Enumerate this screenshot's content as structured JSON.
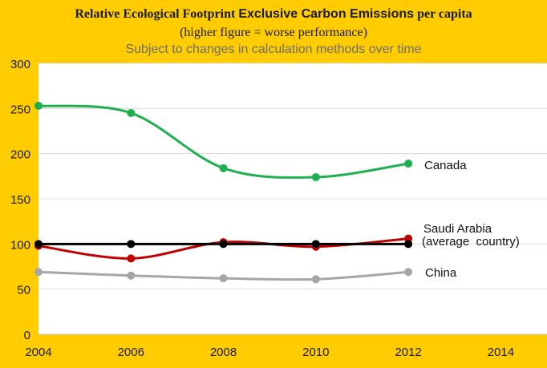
{
  "title": {
    "part1": "Relative Ecological Footprint ",
    "part2": "Exclusive Carbon Emissions",
    "part3": " per capita"
  },
  "subtitle1": "(higher figure = worse performance)",
  "subtitle2": "Subject to changes in calculation methods over time",
  "colors": {
    "background": "#FFCC00",
    "plot_area": "#FFFFFF",
    "grid": "#D9D9D9"
  },
  "chart_data": {
    "type": "line",
    "x_ticks": [
      2004,
      2006,
      2008,
      2010,
      2012,
      2014
    ],
    "y_ticks": [
      0,
      50,
      100,
      150,
      200,
      250,
      300
    ],
    "xlim": [
      2004,
      2015
    ],
    "ylim": [
      0,
      300
    ],
    "grid": true,
    "series": [
      {
        "name": "Canada",
        "color": "#1DB04E",
        "points": [
          [
            2004,
            253
          ],
          [
            2006,
            245
          ],
          [
            2008,
            184
          ],
          [
            2010,
            174
          ],
          [
            2012,
            189
          ]
        ],
        "labels": [
          "Canada"
        ]
      },
      {
        "name": "Saudi Arabia",
        "color": "#C00000",
        "points": [
          [
            2004,
            98
          ],
          [
            2006,
            84
          ],
          [
            2008,
            102
          ],
          [
            2010,
            97
          ],
          [
            2012,
            106
          ]
        ],
        "labels": [
          "Saudi Arabia"
        ]
      },
      {
        "name": "(average country)",
        "color": "#000000",
        "points": [
          [
            2004,
            100
          ],
          [
            2006,
            100
          ],
          [
            2008,
            100
          ],
          [
            2010,
            100
          ],
          [
            2012,
            100
          ]
        ],
        "labels": [
          "(average  country)"
        ]
      },
      {
        "name": "China",
        "color": "#A6A6A6",
        "points": [
          [
            2004,
            69
          ],
          [
            2006,
            65
          ],
          [
            2008,
            62
          ],
          [
            2010,
            61
          ],
          [
            2012,
            69
          ]
        ],
        "labels": [
          "China"
        ]
      }
    ]
  }
}
